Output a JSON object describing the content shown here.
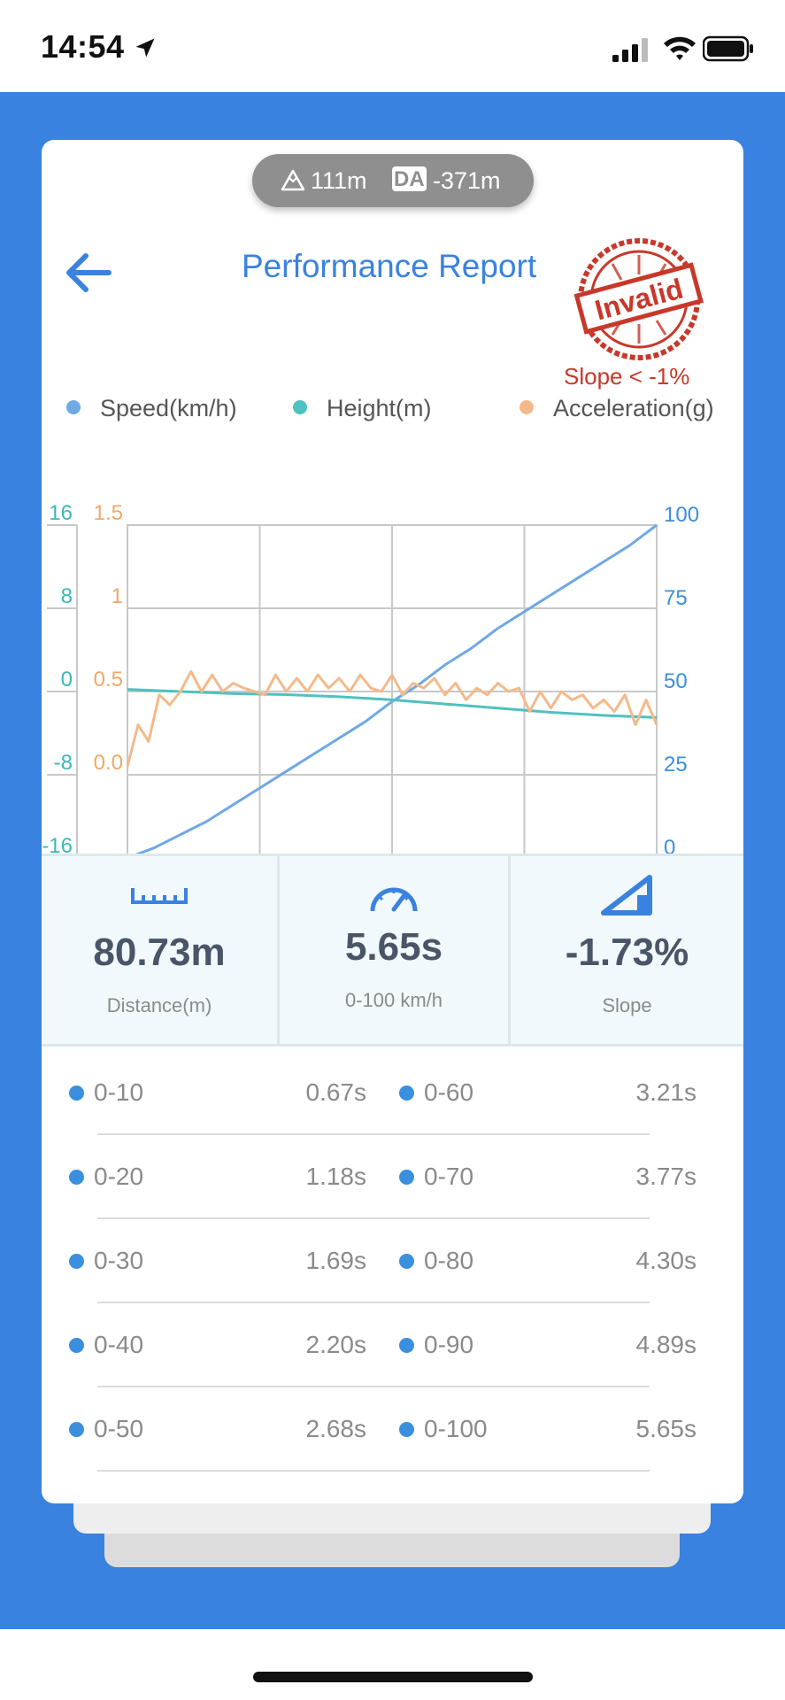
{
  "status_bar": {
    "time": "14:54"
  },
  "pill": {
    "altitude": "111m",
    "da_label": "DA",
    "density_altitude": "-371m"
  },
  "header": {
    "title": "Performance Report",
    "stamp_text": "Invalid",
    "warning": "Slope < -1%"
  },
  "legend": [
    {
      "label": "Speed(km/h)",
      "color": "#6fa8e6"
    },
    {
      "label": "Height(m)",
      "color": "#4fc1c0"
    },
    {
      "label": "Acceleration(g)",
      "color": "#f4b98a"
    }
  ],
  "chart_data": {
    "type": "line",
    "x_ticks": 4,
    "axes": {
      "height_left": {
        "ticks": [
          "16",
          "8",
          "0",
          "-8",
          "-16"
        ],
        "ylim": [
          -16,
          16
        ],
        "color": "#3bb8b8"
      },
      "accel_left": {
        "ticks": [
          "1.5",
          "1",
          "0.5",
          "0.0"
        ],
        "ylim": [
          0.0,
          1.5
        ],
        "color": "#f0a865"
      },
      "speed_right": {
        "ticks": [
          "100",
          "75",
          "50",
          "25",
          "0"
        ],
        "ylim": [
          0,
          100
        ],
        "color": "#3a8fdf"
      }
    },
    "grid": true,
    "series": [
      {
        "name": "Speed(km/h)",
        "axis": "speed_right",
        "color": "#6fa8e6",
        "x": [
          0,
          0.05,
          0.1,
          0.15,
          0.2,
          0.25,
          0.3,
          0.35,
          0.4,
          0.45,
          0.5,
          0.55,
          0.6,
          0.65,
          0.7,
          0.75,
          0.8,
          0.85,
          0.9,
          0.95,
          1.0
        ],
        "values": [
          0,
          3,
          7,
          11,
          16,
          21,
          26,
          31,
          36,
          41,
          47,
          52,
          58,
          63,
          69,
          74,
          79,
          84,
          89,
          94,
          100
        ]
      },
      {
        "name": "Height(m)",
        "axis": "height_left",
        "color": "#4fc1c0",
        "x": [
          0,
          0.1,
          0.2,
          0.3,
          0.4,
          0.5,
          0.6,
          0.7,
          0.8,
          0.9,
          1.0
        ],
        "values": [
          0.2,
          0.0,
          -0.2,
          -0.3,
          -0.5,
          -0.8,
          -1.2,
          -1.6,
          -2.0,
          -2.3,
          -2.5
        ]
      },
      {
        "name": "Acceleration(g)",
        "axis": "accel_left",
        "color": "#f4b98a",
        "x": [
          0,
          0.02,
          0.04,
          0.06,
          0.08,
          0.1,
          0.12,
          0.14,
          0.16,
          0.18,
          0.2,
          0.22,
          0.24,
          0.26,
          0.28,
          0.3,
          0.32,
          0.34,
          0.36,
          0.38,
          0.4,
          0.42,
          0.44,
          0.46,
          0.48,
          0.5,
          0.52,
          0.54,
          0.56,
          0.58,
          0.6,
          0.62,
          0.64,
          0.66,
          0.68,
          0.7,
          0.72,
          0.74,
          0.76,
          0.78,
          0.8,
          0.82,
          0.84,
          0.86,
          0.88,
          0.9,
          0.92,
          0.94,
          0.96,
          0.98,
          1.0
        ],
        "values": [
          0.05,
          0.3,
          0.2,
          0.48,
          0.42,
          0.5,
          0.62,
          0.5,
          0.6,
          0.5,
          0.55,
          0.52,
          0.5,
          0.48,
          0.6,
          0.5,
          0.58,
          0.5,
          0.6,
          0.52,
          0.58,
          0.5,
          0.6,
          0.52,
          0.5,
          0.6,
          0.48,
          0.55,
          0.52,
          0.58,
          0.48,
          0.55,
          0.45,
          0.52,
          0.48,
          0.55,
          0.5,
          0.52,
          0.38,
          0.5,
          0.4,
          0.5,
          0.45,
          0.48,
          0.4,
          0.45,
          0.38,
          0.48,
          0.3,
          0.45,
          0.3
        ]
      }
    ]
  },
  "stats": [
    {
      "value": "80.73m",
      "label": "Distance(m)",
      "icon": "ruler-icon"
    },
    {
      "value": "5.65s",
      "label": "0-100 km/h",
      "icon": "speedometer-icon"
    },
    {
      "value": "-1.73%",
      "label": "Slope",
      "icon": "slope-icon"
    }
  ],
  "splits": [
    {
      "left_label": "0-10",
      "left_value": "0.67s",
      "right_label": "0-60",
      "right_value": "3.21s"
    },
    {
      "left_label": "0-20",
      "left_value": "1.18s",
      "right_label": "0-70",
      "right_value": "3.77s"
    },
    {
      "left_label": "0-30",
      "left_value": "1.69s",
      "right_label": "0-80",
      "right_value": "4.30s"
    },
    {
      "left_label": "0-40",
      "left_value": "2.20s",
      "right_label": "0-90",
      "right_value": "4.89s"
    },
    {
      "left_label": "0-50",
      "left_value": "2.68s",
      "right_label": "0-100",
      "right_value": "5.65s"
    }
  ]
}
